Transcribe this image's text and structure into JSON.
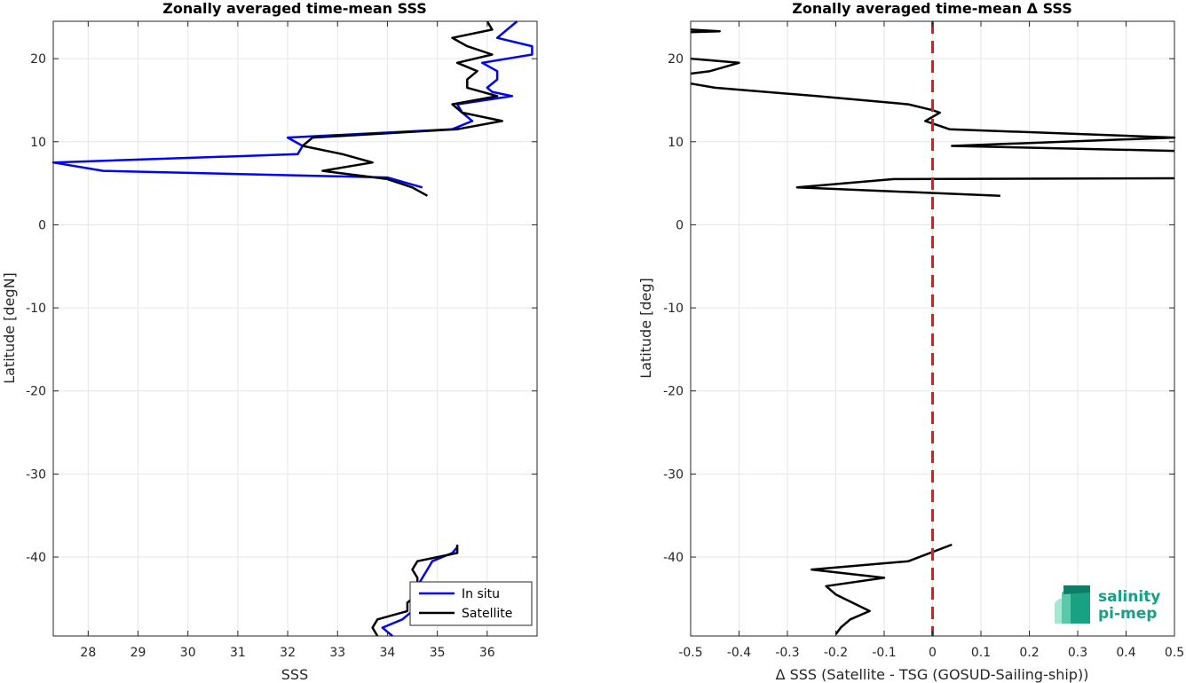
{
  "chart_data": [
    {
      "type": "line",
      "title": "Zonally averaged time-mean SSS",
      "xlabel": "SSS",
      "ylabel": "Latitude [degN]",
      "xlim": [
        27.3,
        37.0
      ],
      "ylim": [
        -49.5,
        24.5
      ],
      "xticks": [
        28,
        29,
        30,
        31,
        32,
        33,
        34,
        35,
        36
      ],
      "yticks": [
        -40,
        -30,
        -20,
        -10,
        0,
        10,
        20
      ],
      "grid": true,
      "legend": {
        "position": "bottom-right",
        "entries": [
          "In situ",
          "Satellite"
        ]
      },
      "series": [
        {
          "name": "In situ",
          "color": "#0000ff",
          "segments": [
            [
              [
                36.6,
                24.5
              ],
              [
                36.2,
                22.5
              ],
              [
                36.9,
                21.5
              ],
              [
                36.9,
                20.5
              ],
              [
                35.9,
                19.5
              ],
              [
                36.2,
                18.5
              ],
              [
                36.2,
                17.5
              ],
              [
                36.0,
                16.5
              ],
              [
                36.1,
                16.0
              ],
              [
                36.5,
                15.5
              ],
              [
                35.4,
                14.5
              ],
              [
                35.5,
                13.5
              ],
              [
                35.7,
                12.5
              ],
              [
                35.3,
                11.5
              ],
              [
                32.0,
                10.5
              ],
              [
                32.3,
                9.5
              ],
              [
                32.2,
                8.5
              ],
              [
                27.3,
                7.5
              ],
              [
                28.3,
                6.5
              ],
              [
                34.0,
                5.7
              ],
              [
                34.4,
                5.0
              ],
              [
                34.7,
                4.5
              ]
            ],
            [
              [
                35.4,
                -38.8
              ],
              [
                35.3,
                -39.5
              ],
              [
                34.9,
                -40.5
              ],
              [
                34.8,
                -41.5
              ],
              [
                34.7,
                -42.5
              ],
              [
                34.6,
                -43.5
              ],
              [
                34.5,
                -44.5
              ],
              [
                34.5,
                -45.5
              ],
              [
                34.5,
                -46.5
              ],
              [
                34.3,
                -47.5
              ],
              [
                33.9,
                -48.5
              ],
              [
                34.0,
                -49.0
              ],
              [
                34.1,
                -49.5
              ]
            ]
          ]
        },
        {
          "name": "Satellite",
          "color": "#000000",
          "segments": [
            [
              [
                36.0,
                24.5
              ],
              [
                36.1,
                23.5
              ],
              [
                35.3,
                22.5
              ],
              [
                35.6,
                21.5
              ],
              [
                36.1,
                20.5
              ],
              [
                35.4,
                19.5
              ],
              [
                35.8,
                18.5
              ],
              [
                35.6,
                17.5
              ],
              [
                35.6,
                16.5
              ],
              [
                36.2,
                15.5
              ],
              [
                35.3,
                14.5
              ],
              [
                35.5,
                13.5
              ],
              [
                36.3,
                12.5
              ],
              [
                35.4,
                11.5
              ],
              [
                32.5,
                10.5
              ],
              [
                32.3,
                9.5
              ],
              [
                33.1,
                8.5
              ],
              [
                33.7,
                7.5
              ],
              [
                32.7,
                6.5
              ],
              [
                34.0,
                5.5
              ],
              [
                34.5,
                4.5
              ],
              [
                34.8,
                3.5
              ]
            ],
            [
              [
                35.4,
                -38.5
              ],
              [
                35.4,
                -39.5
              ],
              [
                34.6,
                -40.5
              ],
              [
                34.5,
                -41.5
              ],
              [
                34.6,
                -42.5
              ],
              [
                34.6,
                -43.5
              ],
              [
                34.6,
                -44.5
              ],
              [
                34.4,
                -45.5
              ],
              [
                34.4,
                -46.5
              ],
              [
                33.8,
                -47.5
              ],
              [
                33.7,
                -48.5
              ],
              [
                33.8,
                -49.5
              ]
            ]
          ]
        }
      ]
    },
    {
      "type": "line",
      "title": "Zonally averaged time-mean Δ SSS",
      "xlabel": "Δ SSS (Satellite - TSG (GOSUD-Sailing-ship))",
      "ylabel": "Latitude [deg]",
      "xlim": [
        -0.5,
        0.5
      ],
      "ylim": [
        -49.5,
        24.5
      ],
      "xticks": [
        -0.5,
        -0.4,
        -0.3,
        -0.2,
        -0.1,
        0,
        0.1,
        0.2,
        0.3,
        0.4,
        0.5
      ],
      "xticklabels": [
        "-0.5",
        "-0.4",
        "-0.3",
        "-0.2",
        "-0.1",
        "0",
        "0.1",
        "0.2",
        "0.3",
        "0.4",
        "0.5"
      ],
      "yticks": [
        -40,
        -30,
        -20,
        -10,
        0,
        10,
        20
      ],
      "grid": true,
      "reference_line": {
        "x": 0,
        "color": "#e31a1c",
        "style": "dashed"
      },
      "series": [
        {
          "color": "#000000",
          "segments": [
            [
              [
                -0.5,
                23.5
              ],
              [
                -0.44,
                23.3
              ],
              [
                -0.5,
                23.2
              ]
            ],
            [
              [
                -0.5,
                20.0
              ],
              [
                -0.4,
                19.5
              ],
              [
                -0.46,
                18.5
              ],
              [
                -0.5,
                18.2
              ]
            ],
            [
              [
                -0.5,
                17.0
              ],
              [
                -0.45,
                16.5
              ],
              [
                -0.24,
                15.5
              ],
              [
                -0.05,
                14.5
              ],
              [
                0.0,
                13.8
              ],
              [
                0.015,
                13.5
              ],
              [
                -0.015,
                12.5
              ],
              [
                0.01,
                12.0
              ],
              [
                0.035,
                11.5
              ],
              [
                0.5,
                10.5
              ],
              [
                0.04,
                9.5
              ],
              [
                0.5,
                8.9
              ]
            ],
            [
              [
                0.5,
                5.6
              ],
              [
                -0.08,
                5.5
              ],
              [
                -0.28,
                4.5
              ],
              [
                0.14,
                3.5
              ]
            ],
            [
              [
                0.04,
                -38.5
              ],
              [
                -0.05,
                -40.5
              ],
              [
                -0.25,
                -41.5
              ],
              [
                -0.1,
                -42.5
              ],
              [
                -0.22,
                -43.5
              ],
              [
                -0.2,
                -44.5
              ],
              [
                -0.13,
                -46.5
              ],
              [
                -0.17,
                -47.5
              ],
              [
                -0.19,
                -48.5
              ],
              [
                -0.2,
                -49.3
              ]
            ]
          ]
        }
      ]
    }
  ],
  "logo": {
    "line1": "salinity",
    "line2": "pi-mep",
    "color": "#16a085"
  }
}
